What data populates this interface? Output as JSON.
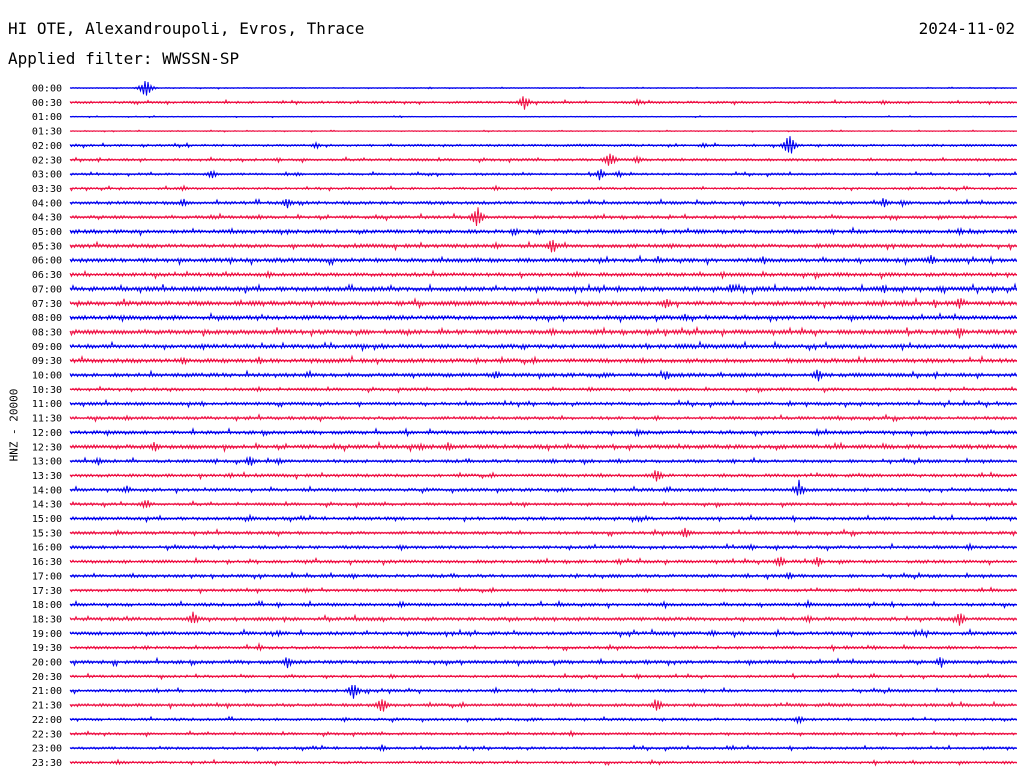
{
  "header": {
    "station": "HI OTE, Alexandroupoli, Evros, Thrace",
    "date": "2024-11-02",
    "filter": "Applied filter: WWSSN-SP"
  },
  "chart_data": {
    "type": "line",
    "title": "HI OTE, Alexandroupoli, Evros, Thrace",
    "date": "2024-11-02",
    "subtitle": "Applied filter: WWSSN-SP",
    "ylabel": "HNZ - 20000",
    "xlabel": "",
    "row_colors": [
      "#0000ee",
      "#ee1144"
    ],
    "rows": [
      {
        "time": "00:00",
        "noise": 0.3,
        "events": [
          [
            0.08,
            12
          ]
        ]
      },
      {
        "time": "00:30",
        "noise": 0.7,
        "events": [
          [
            0.48,
            9
          ],
          [
            0.6,
            4
          ],
          [
            0.86,
            3
          ]
        ]
      },
      {
        "time": "01:00",
        "noise": 0.3,
        "events": []
      },
      {
        "time": "01:30",
        "noise": 0.3,
        "events": []
      },
      {
        "time": "02:00",
        "noise": 0.7,
        "events": [
          [
            0.26,
            4
          ],
          [
            0.67,
            3
          ],
          [
            0.76,
            14
          ]
        ]
      },
      {
        "time": "02:30",
        "noise": 0.8,
        "events": [
          [
            0.57,
            11
          ],
          [
            0.6,
            5
          ],
          [
            0.22,
            3
          ]
        ]
      },
      {
        "time": "03:00",
        "noise": 0.7,
        "events": [
          [
            0.15,
            6
          ],
          [
            0.24,
            3
          ],
          [
            0.56,
            7
          ],
          [
            0.58,
            4
          ]
        ]
      },
      {
        "time": "03:30",
        "noise": 0.7,
        "events": [
          [
            0.12,
            3
          ],
          [
            0.45,
            3
          ]
        ]
      },
      {
        "time": "04:00",
        "noise": 1.0,
        "events": [
          [
            0.12,
            5
          ],
          [
            0.23,
            7
          ],
          [
            0.86,
            6
          ],
          [
            0.88,
            4
          ]
        ]
      },
      {
        "time": "04:30",
        "noise": 1.0,
        "events": [
          [
            0.43,
            14
          ],
          [
            0.2,
            3
          ],
          [
            0.15,
            3
          ]
        ]
      },
      {
        "time": "05:00",
        "noise": 1.2,
        "events": [
          [
            0.47,
            5
          ],
          [
            0.94,
            5
          ],
          [
            0.23,
            3
          ]
        ]
      },
      {
        "time": "05:30",
        "noise": 1.2,
        "events": [
          [
            0.51,
            10
          ],
          [
            0.45,
            4
          ]
        ]
      },
      {
        "time": "06:00",
        "noise": 1.3,
        "events": [
          [
            0.91,
            7
          ],
          [
            0.17,
            4
          ]
        ]
      },
      {
        "time": "06:30",
        "noise": 1.2,
        "events": [
          [
            0.21,
            5
          ],
          [
            0.69,
            4
          ]
        ]
      },
      {
        "time": "07:00",
        "noise": 1.4,
        "events": [
          [
            0.58,
            4
          ],
          [
            0.7,
            5
          ],
          [
            0.86,
            5
          ],
          [
            0.92,
            4
          ]
        ]
      },
      {
        "time": "07:30",
        "noise": 1.4,
        "events": [
          [
            0.63,
            8
          ],
          [
            0.94,
            7
          ],
          [
            0.88,
            4
          ]
        ]
      },
      {
        "time": "08:00",
        "noise": 1.3,
        "events": [
          [
            0.65,
            5
          ],
          [
            0.11,
            3
          ]
        ]
      },
      {
        "time": "08:30",
        "noise": 1.4,
        "events": [
          [
            0.51,
            5
          ],
          [
            0.94,
            7
          ],
          [
            0.61,
            3
          ]
        ]
      },
      {
        "time": "09:00",
        "noise": 1.3,
        "events": [
          [
            0.33,
            3
          ],
          [
            0.65,
            3
          ]
        ]
      },
      {
        "time": "09:30",
        "noise": 1.3,
        "events": [
          [
            0.12,
            5
          ],
          [
            0.2,
            5
          ],
          [
            0.43,
            4
          ]
        ]
      },
      {
        "time": "10:00",
        "noise": 1.2,
        "events": [
          [
            0.45,
            6
          ],
          [
            0.63,
            6
          ],
          [
            0.79,
            8
          ],
          [
            0.25,
            3
          ]
        ]
      },
      {
        "time": "10:30",
        "noise": 0.9,
        "events": [
          [
            0.2,
            3
          ],
          [
            0.55,
            3
          ]
        ]
      },
      {
        "time": "11:00",
        "noise": 1.0,
        "events": [
          [
            0.14,
            3
          ],
          [
            0.76,
            3
          ]
        ]
      },
      {
        "time": "11:30",
        "noise": 1.0,
        "events": [
          [
            0.06,
            3
          ],
          [
            0.62,
            3
          ]
        ]
      },
      {
        "time": "12:00",
        "noise": 1.1,
        "events": [
          [
            0.13,
            3
          ],
          [
            0.6,
            4
          ],
          [
            0.79,
            4
          ]
        ]
      },
      {
        "time": "12:30",
        "noise": 1.3,
        "events": [
          [
            0.09,
            7
          ],
          [
            0.37,
            5
          ],
          [
            0.4,
            6
          ]
        ]
      },
      {
        "time": "13:00",
        "noise": 1.0,
        "events": [
          [
            0.03,
            5
          ],
          [
            0.19,
            7
          ],
          [
            0.22,
            4
          ],
          [
            0.51,
            3
          ],
          [
            0.58,
            3
          ]
        ]
      },
      {
        "time": "13:30",
        "noise": 1.0,
        "events": [
          [
            0.62,
            9
          ],
          [
            0.17,
            3
          ]
        ]
      },
      {
        "time": "14:00",
        "noise": 1.0,
        "events": [
          [
            0.06,
            5
          ],
          [
            0.77,
            11
          ],
          [
            0.63,
            3
          ]
        ]
      },
      {
        "time": "14:30",
        "noise": 0.9,
        "events": [
          [
            0.08,
            7
          ],
          [
            0.48,
            3
          ]
        ]
      },
      {
        "time": "15:00",
        "noise": 1.0,
        "events": [
          [
            0.19,
            4
          ],
          [
            0.6,
            3
          ]
        ]
      },
      {
        "time": "15:30",
        "noise": 1.0,
        "events": [
          [
            0.65,
            7
          ],
          [
            0.05,
            3
          ]
        ]
      },
      {
        "time": "16:00",
        "noise": 1.0,
        "events": [
          [
            0.72,
            4
          ],
          [
            0.95,
            4
          ],
          [
            0.35,
            3
          ]
        ]
      },
      {
        "time": "16:30",
        "noise": 1.0,
        "events": [
          [
            0.75,
            8
          ],
          [
            0.79,
            7
          ],
          [
            0.58,
            3
          ]
        ]
      },
      {
        "time": "17:00",
        "noise": 1.0,
        "events": [
          [
            0.76,
            5
          ],
          [
            0.3,
            3
          ]
        ]
      },
      {
        "time": "17:30",
        "noise": 0.9,
        "events": [
          [
            0.61,
            3
          ],
          [
            0.25,
            3
          ]
        ]
      },
      {
        "time": "18:00",
        "noise": 1.0,
        "events": [
          [
            0.35,
            4
          ],
          [
            0.78,
            4
          ],
          [
            0.22,
            3
          ]
        ]
      },
      {
        "time": "18:30",
        "noise": 1.1,
        "events": [
          [
            0.13,
            9
          ],
          [
            0.94,
            9
          ],
          [
            0.78,
            5
          ]
        ]
      },
      {
        "time": "19:00",
        "noise": 1.1,
        "events": [
          [
            0.22,
            4
          ],
          [
            0.68,
            4
          ],
          [
            0.9,
            4
          ]
        ]
      },
      {
        "time": "19:30",
        "noise": 0.9,
        "events": [
          [
            0.08,
            3
          ],
          [
            0.2,
            4
          ],
          [
            0.85,
            3
          ]
        ]
      },
      {
        "time": "20:00",
        "noise": 1.1,
        "events": [
          [
            0.23,
            7
          ],
          [
            0.92,
            7
          ],
          [
            0.61,
            3
          ]
        ]
      },
      {
        "time": "20:30",
        "noise": 0.8,
        "events": [
          [
            0.6,
            3
          ],
          [
            0.34,
            3
          ]
        ]
      },
      {
        "time": "21:00",
        "noise": 0.9,
        "events": [
          [
            0.3,
            12
          ],
          [
            0.45,
            3
          ]
        ]
      },
      {
        "time": "21:30",
        "noise": 1.0,
        "events": [
          [
            0.33,
            10
          ],
          [
            0.62,
            9
          ]
        ]
      },
      {
        "time": "22:00",
        "noise": 0.8,
        "events": [
          [
            0.77,
            5
          ],
          [
            0.29,
            3
          ]
        ]
      },
      {
        "time": "22:30",
        "noise": 0.8,
        "events": [
          [
            0.53,
            3
          ]
        ]
      },
      {
        "time": "23:00",
        "noise": 0.8,
        "events": [
          [
            0.33,
            4
          ],
          [
            0.7,
            3
          ]
        ]
      },
      {
        "time": "23:30",
        "noise": 0.8,
        "events": [
          [
            0.05,
            3
          ]
        ]
      }
    ]
  }
}
